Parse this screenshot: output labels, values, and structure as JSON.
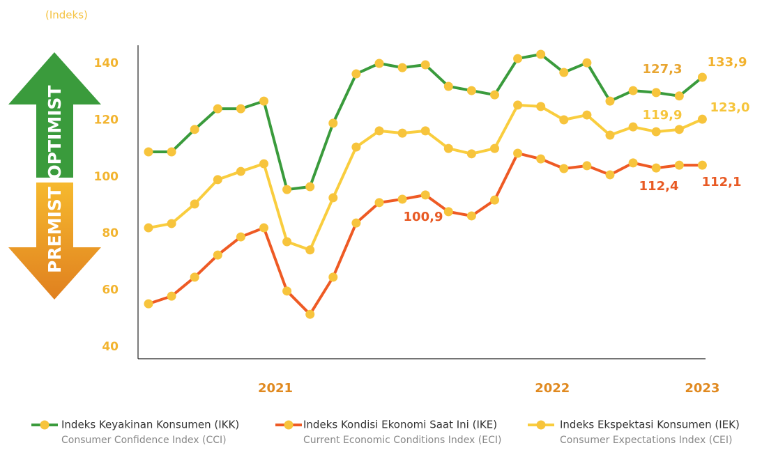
{
  "chart_data": {
    "type": "line",
    "y_label": "(Indeks)",
    "arrow_up_label": "OPTIMIST",
    "arrow_down_label": "PREMIST",
    "categories": [
      null,
      null,
      null,
      null,
      null,
      "2021",
      null,
      null,
      null,
      null,
      null,
      null,
      null,
      null,
      null,
      null,
      null,
      "2022",
      null,
      null,
      null,
      null,
      null,
      null,
      "2023"
    ],
    "ylim": [
      40,
      140
    ],
    "yticks": [
      40,
      60,
      80,
      100,
      120,
      140
    ],
    "grid": false,
    "marker_color": "#f7c43c",
    "series": [
      {
        "name": "Indeks Keyakinan Konsumen (IKK)",
        "name_en": "Consumer Confidence Index (CCI)",
        "color": "#3a9b3c",
        "values": [
          108.8,
          108.8,
          116.7,
          124.0,
          124.0,
          126.7,
          95.5,
          96.5,
          118.9,
          136.3,
          140.0,
          138.5,
          139.5,
          131.9,
          130.4,
          128.9,
          141.7,
          143.2,
          136.8,
          140.2,
          126.7,
          130.4,
          129.7,
          128.5,
          135.1
        ]
      },
      {
        "name": "Indeks Kondisi Ekonomi Saat Ini (IKE)",
        "name_en": "Current Economic Conditions Index (ECI)",
        "color": "#ee5a24",
        "values": [
          55.2,
          57.9,
          64.6,
          72.4,
          78.8,
          82.0,
          59.7,
          51.5,
          64.6,
          83.7,
          90.9,
          92.1,
          93.6,
          87.7,
          86.2,
          91.8,
          108.3,
          106.3,
          102.9,
          103.9,
          100.7,
          104.9,
          103.1,
          104.1,
          104.1
        ]
      },
      {
        "name": "Indeks Ekspektasi Konsumen (IEK)",
        "name_en": "Consumer Expectations Index (CEI)",
        "color": "#f9cd3e",
        "values": [
          82.0,
          83.5,
          90.4,
          99.0,
          101.9,
          104.6,
          77.1,
          74.2,
          92.6,
          110.5,
          116.2,
          115.4,
          116.2,
          110.0,
          108.1,
          110.0,
          125.3,
          124.8,
          120.1,
          121.8,
          114.7,
          117.6,
          115.9,
          116.7,
          120.3
        ]
      }
    ],
    "annotations": [
      {
        "text": "127,3",
        "color": "#e8a530"
      },
      {
        "text": "133,9",
        "color": "#f2b22e"
      },
      {
        "text": "119,9",
        "color": "#f6c53c"
      },
      {
        "text": "123,0",
        "color": "#f6c53c"
      },
      {
        "text": "100,9",
        "color": "#e85a24"
      },
      {
        "text": "112,4",
        "color": "#e85a24"
      },
      {
        "text": "112,1",
        "color": "#e85a24"
      }
    ]
  }
}
